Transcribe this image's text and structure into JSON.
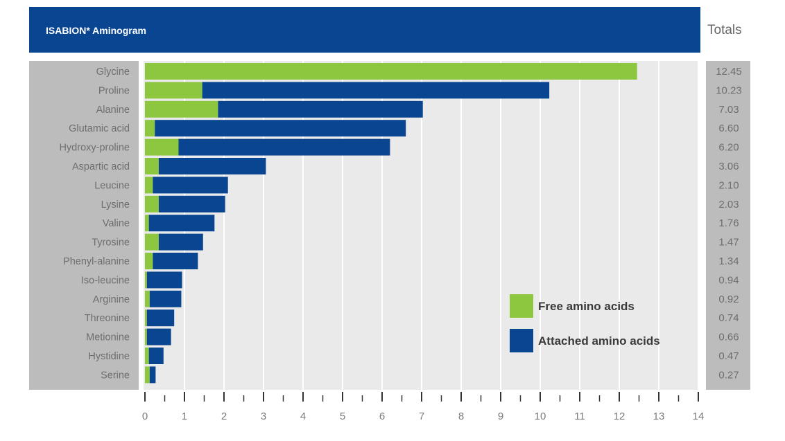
{
  "header": {
    "title": "ISABION* Aminogram",
    "totals_title": "Totals"
  },
  "colors": {
    "header_bg": "#0a4591",
    "free": "#8dc63f",
    "attached": "#0a4591",
    "panel": "#bcbcbc",
    "plot_bg": "#ebeaea"
  },
  "chart_data": {
    "type": "bar",
    "orientation": "horizontal",
    "stacked": true,
    "title": "ISABION* Aminogram",
    "categories": [
      "Glycine",
      "Proline",
      "Alanine",
      "Glutamic acid",
      "Hydroxy-proline",
      "Aspartic acid",
      "Leucine",
      "Lysine",
      "Valine",
      "Tyrosine",
      "Phenyl-alanine",
      "Iso-leucine",
      "Arginine",
      "Threonine",
      "Metionine",
      "Hystidine",
      "Serine"
    ],
    "series": [
      {
        "name": "Free amino acids",
        "color": "#8dc63f",
        "values": [
          12.45,
          1.45,
          1.85,
          0.25,
          0.85,
          0.35,
          0.2,
          0.35,
          0.1,
          0.35,
          0.2,
          0.05,
          0.12,
          0.05,
          0.05,
          0.1,
          0.12
        ]
      },
      {
        "name": "Attached amino acids",
        "color": "#0a4591",
        "values": [
          0,
          8.78,
          5.18,
          6.35,
          5.35,
          2.71,
          1.9,
          1.68,
          1.66,
          1.12,
          1.14,
          0.89,
          0.8,
          0.69,
          0.61,
          0.37,
          0.15
        ]
      }
    ],
    "totals": [
      "12.45",
      "10.23",
      "7.03",
      "6.60",
      "6.20",
      "3.06",
      "2.10",
      "2.03",
      "1.76",
      "1.47",
      "1.34",
      "0.94",
      "0.92",
      "0.74",
      "0.66",
      "0.47",
      "0.27"
    ],
    "xlim": [
      0,
      14
    ],
    "xticks": [
      "0",
      "1",
      "2",
      "3",
      "4",
      "5",
      "6",
      "7",
      "8",
      "9",
      "10",
      "11",
      "12",
      "13",
      "14"
    ],
    "grid": true,
    "legend_position": "bottom-right"
  }
}
